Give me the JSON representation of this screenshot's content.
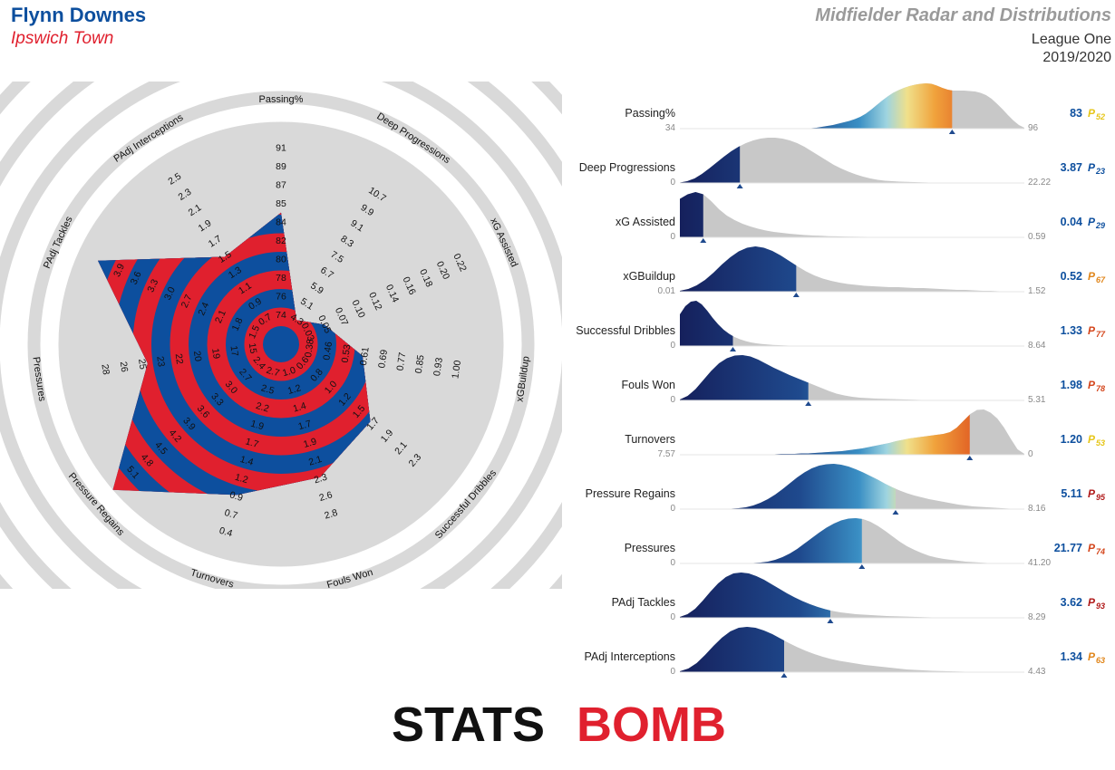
{
  "header": {
    "player": "Flynn Downes",
    "team": "Ipswich Town",
    "title": "Midfielder Radar and Distributions",
    "league": "League One",
    "season": "2019/2020"
  },
  "logo": {
    "text": "STATSBOMB",
    "part1": "STATS",
    "part2": "BOMB"
  },
  "colors": {
    "radar_blue": "#0d4f9e",
    "radar_red": "#e0202e",
    "ring_grey": "#d9d9d9",
    "dist_grey": "#c8c8c8",
    "value_blue": "#0d4f9e"
  },
  "chart_data": [
    {
      "type": "radar",
      "title": "",
      "axes": [
        {
          "label": "Passing%",
          "ticks": [
            "74",
            "76",
            "78",
            "80",
            "82",
            "84",
            "85",
            "87",
            "89",
            "91"
          ],
          "min": 73,
          "max": 91,
          "value": 83
        },
        {
          "label": "Deep Progressions",
          "ticks": [
            "4.3",
            "5.1",
            "5.9",
            "6.7",
            "7.5",
            "8.3",
            "9.1",
            "9.9",
            "10.7"
          ],
          "min": 3.5,
          "max": 10.7,
          "value": 3.87
        },
        {
          "label": "xG Assisted",
          "ticks": [
            "0.03",
            "0.05",
            "0.07",
            "0.10",
            "0.12",
            "0.14",
            "0.16",
            "0.18",
            "0.20",
            "0.22"
          ],
          "min": 0.01,
          "max": 0.22,
          "value": 0.04
        },
        {
          "label": "xGBuildup",
          "ticks": [
            "0.38",
            "0.46",
            "0.53",
            "0.61",
            "0.69",
            "0.77",
            "0.85",
            "0.93",
            "1.00"
          ],
          "min": 0.3,
          "max": 1.0,
          "value": 0.52
        },
        {
          "label": "Successful Dribbles",
          "ticks": [
            "0.6",
            "0.8",
            "1.0",
            "1.2",
            "1.5",
            "1.7",
            "1.9",
            "2.1",
            "2.3"
          ],
          "min": 0.4,
          "max": 2.3,
          "value": 1.33
        },
        {
          "label": "Fouls Won",
          "ticks": [
            "1.0",
            "1.2",
            "1.4",
            "1.7",
            "1.9",
            "2.1",
            "2.3",
            "2.6",
            "2.8"
          ],
          "min": 0.8,
          "max": 2.8,
          "value": 1.98
        },
        {
          "label": "Turnovers",
          "ticks": [
            "2.7",
            "2.5",
            "2.2",
            "1.9",
            "1.7",
            "1.4",
            "1.2",
            "0.9",
            "0.7",
            "0.4"
          ],
          "min": 2.9,
          "max": 0.4,
          "value": 1.2
        },
        {
          "label": "Pressure Regains",
          "ticks": [
            "2.4",
            "2.7",
            "3.0",
            "3.3",
            "3.6",
            "3.9",
            "4.2",
            "4.5",
            "4.8",
            "5.1"
          ],
          "min": 2.1,
          "max": 5.1,
          "value": 5.11
        },
        {
          "label": "Pressures",
          "ticks": [
            "15",
            "17",
            "19",
            "20",
            "22",
            "23",
            "25",
            "26",
            "28"
          ],
          "min": 13.5,
          "max": 28,
          "value": 21.77
        },
        {
          "label": "PAdj Tackles",
          "ticks": [
            "1.5",
            "1.8",
            "2.1",
            "2.4",
            "2.7",
            "3.0",
            "3.3",
            "3.6",
            "3.9"
          ],
          "min": 1.2,
          "max": 3.9,
          "value": 3.62
        },
        {
          "label": "PAdj Interceptions",
          "ticks": [
            "0.7",
            "0.9",
            "1.1",
            "1.3",
            "1.5",
            "1.7",
            "1.9",
            "2.1",
            "2.3",
            "2.5"
          ],
          "min": 0.5,
          "max": 2.5,
          "value": 1.34
        }
      ]
    },
    {
      "type": "area",
      "title": "",
      "rows": [
        {
          "label": "Passing%",
          "min": "34",
          "max": "96",
          "value": "83",
          "percentile": "52",
          "pct_color": "#e6c619",
          "x_min": 34,
          "x_max": 96,
          "x_value": 83,
          "curve": [
            0,
            0,
            0,
            0,
            0,
            0,
            0,
            0,
            0,
            0,
            0,
            0,
            0,
            0,
            0,
            0,
            0,
            0,
            0,
            0,
            0,
            0,
            0,
            0,
            0.01,
            0.02,
            0.04,
            0.06,
            0.08,
            0.11,
            0.14,
            0.17,
            0.21,
            0.26,
            0.33,
            0.42,
            0.52,
            0.62,
            0.71,
            0.79,
            0.85,
            0.9,
            0.94,
            0.97,
            0.99,
            1.0,
            0.99,
            0.95,
            0.9,
            0.86,
            0.84,
            0.84,
            0.84,
            0.83,
            0.82,
            0.79,
            0.74,
            0.66,
            0.55,
            0.43,
            0.3,
            0.18,
            0.08,
            0.02
          ]
        },
        {
          "label": "Deep Progressions",
          "min": "0",
          "max": "22.22",
          "value": "3.87",
          "percentile": "23",
          "pct_color": "#0d4f9e",
          "x_min": 0,
          "x_max": 22.22,
          "x_value": 3.87,
          "curve": [
            0.01,
            0.04,
            0.1,
            0.2,
            0.32,
            0.45,
            0.58,
            0.7,
            0.8,
            0.88,
            0.94,
            0.98,
            1.0,
            1.0,
            0.98,
            0.94,
            0.88,
            0.8,
            0.7,
            0.6,
            0.5,
            0.4,
            0.32,
            0.25,
            0.19,
            0.14,
            0.1,
            0.07,
            0.05,
            0.04,
            0.03,
            0.025,
            0.02,
            0.015,
            0.01,
            0.008,
            0.006,
            0.005,
            0.004,
            0.003,
            0.002,
            0.002,
            0.001,
            0.001,
            0,
            0,
            0,
            0
          ]
        },
        {
          "label": "xG Assisted",
          "min": "0",
          "max": "0.59",
          "value": "0.04",
          "percentile": "29",
          "pct_color": "#0d4f9e",
          "x_min": 0,
          "x_max": 0.59,
          "x_value": 0.04,
          "curve": [
            0.85,
            0.95,
            1.0,
            0.95,
            0.8,
            0.62,
            0.48,
            0.38,
            0.3,
            0.24,
            0.19,
            0.15,
            0.12,
            0.1,
            0.08,
            0.065,
            0.05,
            0.04,
            0.033,
            0.027,
            0.022,
            0.018,
            0.015,
            0.012,
            0.01,
            0.008,
            0.007,
            0.006,
            0.005,
            0.004,
            0.003,
            0.003,
            0.002,
            0.002,
            0.001,
            0.001,
            0.001,
            0,
            0,
            0,
            0,
            0,
            0,
            0,
            0
          ]
        },
        {
          "label": "xGBuildup",
          "min": "0.01",
          "max": "1.52",
          "value": "0.52",
          "percentile": "67",
          "pct_color": "#e0861b",
          "x_min": 0.01,
          "x_max": 1.52,
          "x_value": 0.52,
          "curve": [
            0.02,
            0.06,
            0.14,
            0.26,
            0.42,
            0.6,
            0.76,
            0.89,
            0.97,
            1.0,
            0.97,
            0.9,
            0.8,
            0.68,
            0.56,
            0.45,
            0.36,
            0.29,
            0.24,
            0.2,
            0.17,
            0.15,
            0.13,
            0.12,
            0.11,
            0.1,
            0.1,
            0.09,
            0.08,
            0.08,
            0.07,
            0.06,
            0.05,
            0.04,
            0.04,
            0.03,
            0.02,
            0.02,
            0.01,
            0.01,
            0.005,
            0
          ]
        },
        {
          "label": "Successful Dribbles",
          "min": "0",
          "max": "8.64",
          "value": "1.33",
          "percentile": "77",
          "pct_color": "#d4461c",
          "x_min": 0,
          "x_max": 8.64,
          "x_value": 1.33,
          "curve": [
            0.7,
            0.88,
            0.98,
            1.0,
            0.92,
            0.78,
            0.62,
            0.48,
            0.36,
            0.27,
            0.2,
            0.15,
            0.11,
            0.08,
            0.06,
            0.045,
            0.035,
            0.025,
            0.02,
            0.015,
            0.01,
            0.008,
            0.005,
            0.003,
            0.002,
            0,
            0,
            0,
            0,
            0,
            0,
            0,
            0,
            0,
            0,
            0,
            0,
            0,
            0,
            0,
            0,
            0,
            0,
            0,
            0,
            0,
            0,
            0,
            0,
            0,
            0,
            0,
            0,
            0,
            0,
            0,
            0,
            0,
            0,
            0,
            0,
            0,
            0,
            0
          ]
        },
        {
          "label": "Fouls Won",
          "min": "0",
          "max": "5.31",
          "value": "1.98",
          "percentile": "78",
          "pct_color": "#d4461c",
          "x_min": 0,
          "x_max": 5.31,
          "x_value": 1.98,
          "curve": [
            0.02,
            0.1,
            0.25,
            0.45,
            0.65,
            0.82,
            0.93,
            0.99,
            1.0,
            0.97,
            0.9,
            0.81,
            0.72,
            0.64,
            0.56,
            0.49,
            0.42,
            0.35,
            0.28,
            0.21,
            0.15,
            0.11,
            0.08,
            0.06,
            0.05,
            0.04,
            0.035,
            0.03,
            0.025,
            0.02,
            0.015,
            0.01,
            0.008,
            0.005,
            0.003,
            0.002,
            0.001,
            0,
            0,
            0,
            0,
            0,
            0,
            0,
            0
          ]
        },
        {
          "label": "Turnovers",
          "min": "7.57",
          "max": "0",
          "value": "1.20",
          "percentile": "53",
          "pct_color": "#e6c619",
          "x_min": 7.57,
          "x_max": 0,
          "x_value": 1.2,
          "curve": [
            0,
            0,
            0,
            0,
            0,
            0,
            0,
            0,
            0,
            0,
            0,
            0,
            0,
            0.01,
            0.01,
            0.02,
            0.02,
            0.02,
            0.03,
            0.03,
            0.04,
            0.05,
            0.06,
            0.07,
            0.08,
            0.1,
            0.12,
            0.14,
            0.17,
            0.2,
            0.23,
            0.26,
            0.3,
            0.33,
            0.36,
            0.38,
            0.4,
            0.42,
            0.44,
            0.46,
            0.5,
            0.6,
            0.75,
            0.9,
            0.99,
            1.0,
            0.93,
            0.8,
            0.6,
            0.35,
            0.12,
            0.02
          ]
        },
        {
          "label": "Pressure Regains",
          "min": "0",
          "max": "8.16",
          "value": "5.11",
          "percentile": "95",
          "pct_color": "#b01a1a",
          "x_min": 0,
          "x_max": 8.16,
          "x_value": 5.11,
          "curve": [
            0,
            0,
            0,
            0,
            0,
            0,
            0,
            0.01,
            0.02,
            0.04,
            0.08,
            0.14,
            0.22,
            0.32,
            0.44,
            0.57,
            0.7,
            0.81,
            0.9,
            0.96,
            0.99,
            1.0,
            0.98,
            0.94,
            0.88,
            0.81,
            0.73,
            0.65,
            0.56,
            0.48,
            0.41,
            0.35,
            0.3,
            0.26,
            0.22,
            0.19,
            0.16,
            0.13,
            0.1,
            0.08,
            0.06,
            0.05,
            0.04,
            0.03,
            0.02,
            0.01,
            0.01,
            0
          ]
        },
        {
          "label": "Pressures",
          "min": "0",
          "max": "41.20",
          "value": "21.77",
          "percentile": "74",
          "pct_color": "#d4461c",
          "x_min": 0,
          "x_max": 41.2,
          "x_value": 21.77,
          "curve": [
            0,
            0,
            0,
            0,
            0,
            0,
            0,
            0,
            0,
            0,
            0.01,
            0.02,
            0.04,
            0.08,
            0.14,
            0.22,
            0.32,
            0.44,
            0.56,
            0.68,
            0.79,
            0.88,
            0.95,
            0.99,
            1.0,
            0.98,
            0.92,
            0.83,
            0.72,
            0.6,
            0.48,
            0.38,
            0.3,
            0.23,
            0.17,
            0.13,
            0.1,
            0.08,
            0.06,
            0.04,
            0.03,
            0.02,
            0.01,
            0.01,
            0,
            0,
            0,
            0
          ]
        },
        {
          "label": "PAdj Tackles",
          "min": "0",
          "max": "8.29",
          "value": "3.62",
          "percentile": "93",
          "pct_color": "#b01a1a",
          "x_min": 0,
          "x_max": 8.29,
          "x_value": 3.62,
          "curve": [
            0.02,
            0.08,
            0.2,
            0.38,
            0.58,
            0.76,
            0.9,
            0.98,
            1.0,
            0.98,
            0.92,
            0.84,
            0.74,
            0.64,
            0.54,
            0.45,
            0.37,
            0.3,
            0.24,
            0.19,
            0.15,
            0.12,
            0.1,
            0.08,
            0.07,
            0.06,
            0.05,
            0.04,
            0.035,
            0.03,
            0.025,
            0.02,
            0.015,
            0.01,
            0.008,
            0.005,
            0.003,
            0.002,
            0.001,
            0,
            0,
            0,
            0,
            0,
            0,
            0
          ]
        },
        {
          "label": "PAdj Interceptions",
          "min": "0",
          "max": "4.43",
          "value": "1.34",
          "percentile": "63",
          "pct_color": "#e0861b",
          "x_min": 0,
          "x_max": 4.43,
          "x_value": 1.34,
          "curve": [
            0.02,
            0.08,
            0.2,
            0.38,
            0.58,
            0.76,
            0.9,
            0.98,
            1.0,
            0.98,
            0.92,
            0.84,
            0.74,
            0.64,
            0.55,
            0.47,
            0.4,
            0.34,
            0.29,
            0.25,
            0.22,
            0.19,
            0.16,
            0.14,
            0.12,
            0.1,
            0.08,
            0.06,
            0.05,
            0.04,
            0.03,
            0.025,
            0.02,
            0.015,
            0.01,
            0.008,
            0.005,
            0.003,
            0.002,
            0.001,
            0,
            0
          ]
        }
      ]
    }
  ]
}
